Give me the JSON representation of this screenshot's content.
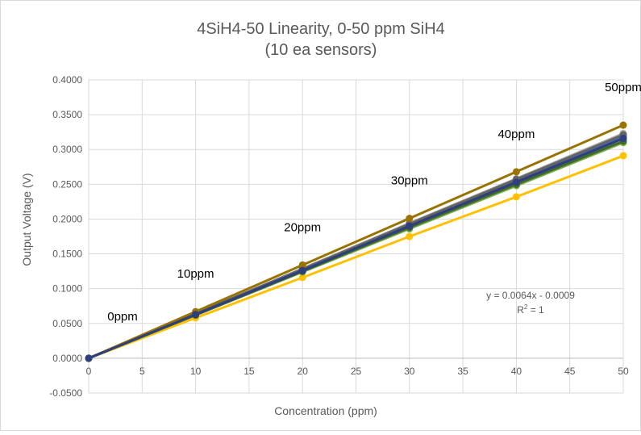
{
  "chart_data": {
    "type": "line",
    "title_line1": "4SiH4-50 Linearity, 0-50 ppm SiH4",
    "title_line2": "(10 ea sensors)",
    "xlabel": "Concentration (ppm)",
    "ylabel": "Output Voltage (V)",
    "xlim": [
      0,
      50
    ],
    "ylim": [
      -0.05,
      0.4
    ],
    "x_ticks": [
      0,
      5,
      10,
      15,
      20,
      25,
      30,
      35,
      40,
      45,
      50
    ],
    "y_ticks": [
      -0.05,
      0,
      0.05,
      0.1,
      0.15,
      0.2,
      0.25,
      0.3,
      0.35,
      0.4
    ],
    "y_tick_labels": [
      "-0.0500",
      "0.0000",
      "0.0500",
      "0.1000",
      "0.1500",
      "0.2000",
      "0.2500",
      "0.3000",
      "0.3500",
      "0.4000"
    ],
    "grid": true,
    "x": [
      0,
      10,
      20,
      30,
      40,
      50
    ],
    "series": [
      {
        "color": "#ffc000",
        "values": [
          0,
          0.058,
          0.116,
          0.175,
          0.232,
          0.291
        ]
      },
      {
        "color": "#70ad47",
        "values": [
          0,
          0.062,
          0.124,
          0.186,
          0.248,
          0.31
        ]
      },
      {
        "color": "#a5a5a5",
        "values": [
          0,
          0.064,
          0.129,
          0.194,
          0.258,
          0.323
        ]
      },
      {
        "color": "#5b9bd5",
        "values": [
          0,
          0.063,
          0.127,
          0.191,
          0.254,
          0.318
        ]
      },
      {
        "color": "#4472c4",
        "values": [
          0,
          0.064,
          0.128,
          0.192,
          0.256,
          0.32
        ]
      },
      {
        "color": "#264478",
        "values": [
          0,
          0.063,
          0.127,
          0.19,
          0.253,
          0.316
        ]
      },
      {
        "color": "#43682b",
        "values": [
          0,
          0.062,
          0.125,
          0.188,
          0.25,
          0.312
        ]
      },
      {
        "color": "#636363",
        "values": [
          0,
          0.064,
          0.128,
          0.193,
          0.257,
          0.321
        ]
      },
      {
        "color": "#997300",
        "values": [
          0,
          0.067,
          0.134,
          0.201,
          0.268,
          0.335
        ]
      },
      {
        "color": "#2e3f7f",
        "values": [
          0,
          0.063,
          0.126,
          0.19,
          0.253,
          0.316
        ]
      }
    ],
    "annotations": [
      {
        "text": "0ppm",
        "x": 0
      },
      {
        "text": "10ppm",
        "x": 10
      },
      {
        "text": "20ppm",
        "x": 20
      },
      {
        "text": "30ppm",
        "x": 30
      },
      {
        "text": "40ppm",
        "x": 40
      },
      {
        "text": "50ppm",
        "x": 50
      }
    ],
    "trendline_equation": "y = 0.0064x - 0.0009",
    "r_squared_prefix": "R",
    "r_squared_exp": "2",
    "r_squared_value": " = 1"
  }
}
